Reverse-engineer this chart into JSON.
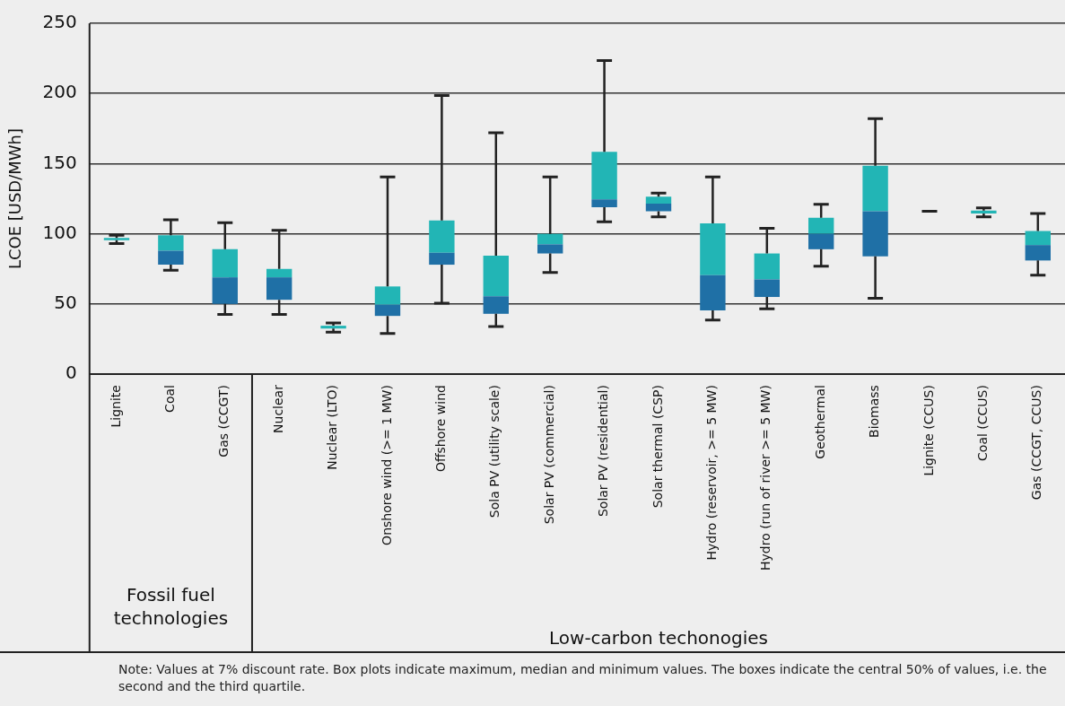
{
  "chart_data": {
    "type": "box",
    "ylabel": "LCOE [USD/MWh]",
    "categories": [
      "Lignite",
      "Coal",
      "Gas (CCGT)",
      "Nuclear",
      "Nuclear (LTO)",
      "Onshore wind (>= 1 MW)",
      "Offshore wind",
      "Sola PV (utility scale)",
      "Solar PV (commercial)",
      "Solar PV (residential)",
      "Solar thermal (CSP)",
      "Hydro (reservoir, >= 5 MW)",
      "Hydro (run of river >= 5 MW)",
      "Geothermal",
      "Biomass",
      "Lignite (CCUS)",
      "Coal (CCUS)",
      "Gas (CCGT, CCUS)"
    ],
    "series": [
      {
        "color": "#22b5b5",
        "colors": [
          "#22b5b5",
          "#1f70a6",
          "#1f70a6",
          "#1f70a6",
          "#22b5b5",
          "#1f70a6",
          "#1f70a6",
          "#1f70a6",
          "#1f70a6",
          "#1f70a6",
          "#1f70a6",
          "#1f70a6",
          "#1f70a6",
          "#1f70a6",
          "#1f70a6",
          "#222222",
          "#22b5b5",
          "#1f70a6"
        ],
        "boxes": [
          {
            "low": 93,
            "q1": 95.5,
            "median": 95.5,
            "q3": 97,
            "high": 99
          },
          {
            "low": 74,
            "q1": 78,
            "median": 88,
            "q3": 99,
            "high": 110
          },
          {
            "low": 42.5,
            "q1": 50,
            "median": 69,
            "q3": 89,
            "high": 108
          },
          {
            "low": 42.5,
            "q1": 53,
            "median": 69,
            "q3": 75,
            "high": 102.5
          },
          {
            "low": 30,
            "q1": 32.5,
            "median": 32.5,
            "q3": 34.5,
            "high": 36.5
          },
          {
            "low": 29,
            "q1": 41.5,
            "median": 49.5,
            "q3": 62.5,
            "high": 140.5
          },
          {
            "low": 50.5,
            "q1": 78,
            "median": 86.5,
            "q3": 109.5,
            "high": 198.5
          },
          {
            "low": 34,
            "q1": 43,
            "median": 55.5,
            "q3": 84.5,
            "high": 172
          },
          {
            "low": 72.5,
            "q1": 86,
            "median": 92.5,
            "q3": 100,
            "high": 140.5
          },
          {
            "low": 108.5,
            "q1": 119,
            "median": 124.5,
            "q3": 158.5,
            "high": 223.5
          },
          {
            "low": 112,
            "q1": 116,
            "median": 121.5,
            "q3": 126.5,
            "high": 129
          },
          {
            "low": 38.5,
            "q1": 45.5,
            "median": 70.5,
            "q3": 107.5,
            "high": 140.5
          },
          {
            "low": 46.5,
            "q1": 55,
            "median": 67.5,
            "q3": 86,
            "high": 104
          },
          {
            "low": 77,
            "q1": 89,
            "median": 100,
            "q3": 111.5,
            "high": 121
          },
          {
            "low": 54,
            "q1": 84,
            "median": 116,
            "q3": 148.5,
            "high": 182
          },
          {
            "low": 116,
            "q1": 116,
            "median": 116,
            "q3": 116,
            "high": 116
          },
          {
            "low": 112,
            "q1": 114.5,
            "median": 114.5,
            "q3": 116.5,
            "high": 118.5
          },
          {
            "low": 70.5,
            "q1": 81,
            "median": 92,
            "q3": 102,
            "high": 114.5
          }
        ]
      }
    ],
    "ylim": [
      0,
      250
    ],
    "yticks": [
      0,
      50,
      100,
      150,
      200,
      250
    ],
    "grid": "y",
    "legend": false,
    "annotations": [
      "Fossil fuel technologies",
      "Low-carbon techonogies",
      "Note: Values at 7% discount rate. Box plots indicate maximum, median and minimum values. The boxes indicate the central 50% of values, i.e. the second and the third quartile."
    ]
  }
}
